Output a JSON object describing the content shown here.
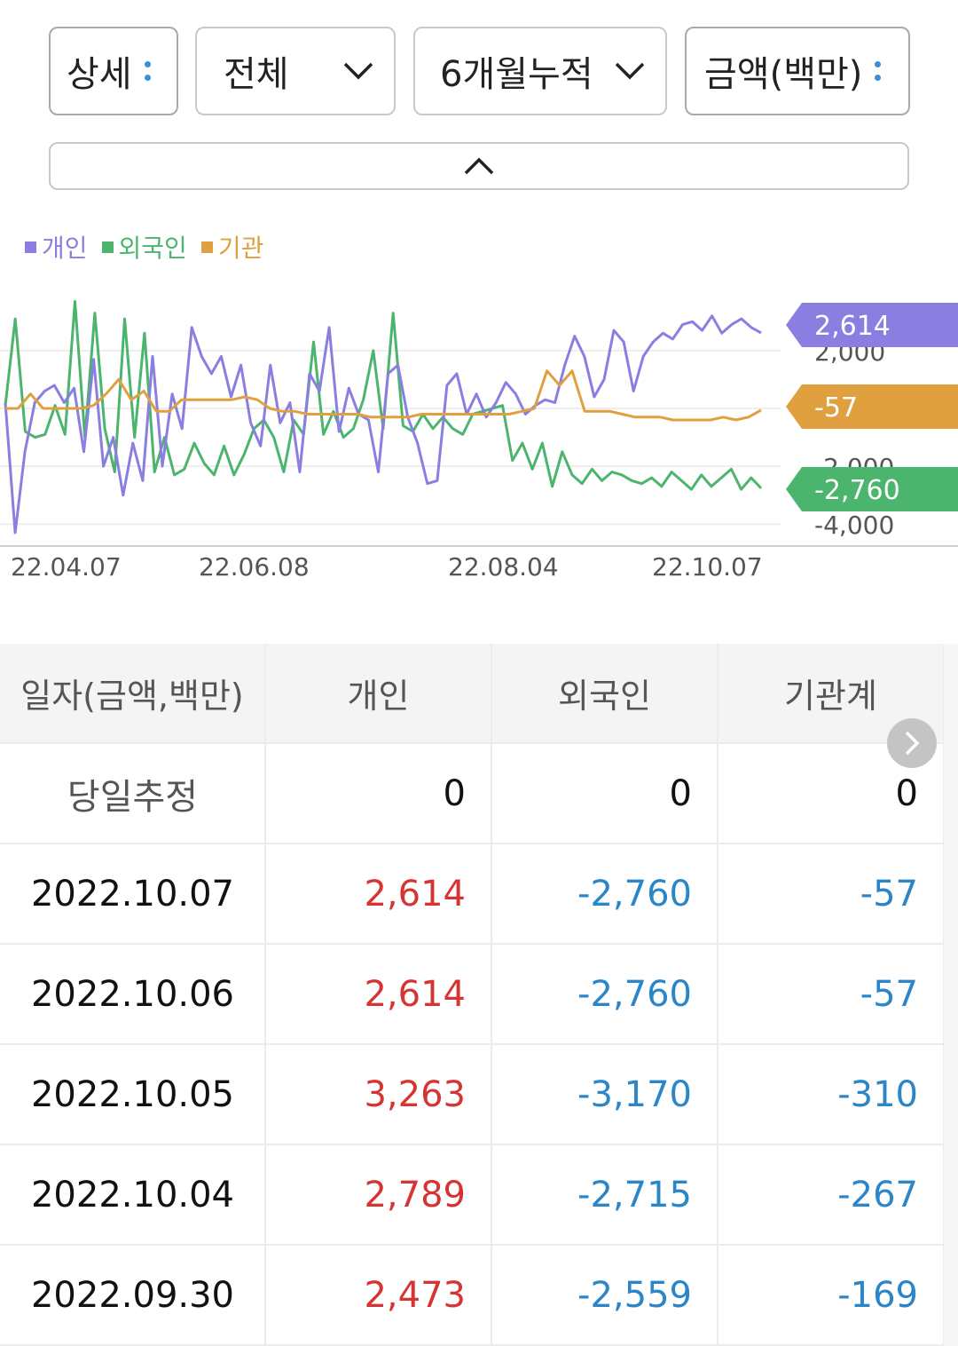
{
  "filters": [
    {
      "label": "상세",
      "control": "dots"
    },
    {
      "label": "전체",
      "control": "chevron"
    },
    {
      "label": "6개월누적",
      "control": "chevron"
    },
    {
      "label": "금액(백만)",
      "control": "dots"
    }
  ],
  "legend": [
    {
      "name": "개인",
      "color": "#8a7ee0"
    },
    {
      "name": "외국인",
      "color": "#4cb56d"
    },
    {
      "name": "기관",
      "color": "#e0a040"
    }
  ],
  "chart_data": {
    "type": "line",
    "x_ticks": [
      "22.04.07",
      "22.06.08",
      "22.08.04",
      "22.10.07"
    ],
    "y_ticks": [
      2000,
      -2000,
      -4000
    ],
    "y_tick_labels": [
      "2,000",
      "-2,000",
      "-4,000"
    ],
    "ylim": [
      -4300,
      4300
    ],
    "grid": true,
    "series": [
      {
        "name": "개인",
        "color": "#8a7ee0",
        "last_value": 2614,
        "last_label": "2,614",
        "values": [
          200,
          -4500,
          -1500,
          200,
          600,
          800,
          200,
          700,
          -1500,
          1700,
          -2000,
          -1000,
          -3000,
          -1200,
          -2500,
          1800,
          -2000,
          500,
          -700,
          2800,
          1800,
          1200,
          1800,
          400,
          1500,
          -500,
          -1300,
          1500,
          -500,
          200,
          -2200,
          1200,
          600,
          2800,
          -800,
          700,
          -200,
          -400,
          -2200,
          1200,
          1500,
          -300,
          -1200,
          -2600,
          -2500,
          800,
          1200,
          -200,
          500,
          -300,
          200,
          900,
          500,
          -200,
          100,
          300,
          200,
          1500,
          2500,
          1800,
          400,
          1000,
          2700,
          2300,
          600,
          1800,
          2300,
          2600,
          2400,
          2900,
          3000,
          2700,
          3200,
          2600,
          2900,
          3100,
          2800,
          2614
        ]
      },
      {
        "name": "외국인",
        "color": "#4cb56d",
        "last_value": -2760,
        "last_label": "-2,760",
        "values": [
          100,
          3100,
          -800,
          -1000,
          -900,
          100,
          -900,
          3700,
          -1000,
          3300,
          -700,
          -2200,
          3100,
          -1000,
          2600,
          -2200,
          -1000,
          -2300,
          -2100,
          -1200,
          -1900,
          -2300,
          -1300,
          -2300,
          -1600,
          -700,
          -400,
          -1000,
          -2200,
          -400,
          -900,
          2300,
          -900,
          -100,
          -1000,
          -700,
          300,
          2000,
          -700,
          3300,
          -600,
          -800,
          -200,
          -700,
          -300,
          -700,
          -900,
          -200,
          -100,
          0,
          100,
          -1800,
          -1200,
          -2100,
          -1200,
          -2700,
          -1500,
          -2300,
          -2600,
          -2100,
          -2500,
          -2200,
          -2300,
          -2500,
          -2600,
          -2400,
          -2700,
          -2200,
          -2500,
          -2800,
          -2300,
          -2700,
          -2400,
          -2100,
          -2800,
          -2400,
          -2760
        ]
      },
      {
        "name": "기관",
        "color": "#e0a040",
        "last_value": -57,
        "last_label": "-57",
        "values": [
          0,
          0,
          500,
          0,
          0,
          0,
          0,
          100,
          500,
          1000,
          300,
          600,
          -100,
          -100,
          300,
          300,
          300,
          300,
          300,
          400,
          300,
          0,
          -100,
          -100,
          -200,
          -200,
          -200,
          -200,
          -200,
          -300,
          -300,
          -300,
          -300,
          -200,
          -200,
          -200,
          -200,
          -200,
          -200,
          -200,
          -200,
          -100,
          0,
          1300,
          800,
          1300,
          -100,
          -100,
          -100,
          -200,
          -300,
          -300,
          -300,
          -400,
          -400,
          -400,
          -400,
          -300,
          -400,
          -300,
          -57
        ]
      }
    ]
  },
  "table": {
    "headers": [
      "일자(금액,백만)",
      "개인",
      "외국인",
      "기관계"
    ],
    "rows": [
      {
        "date": "당일추정",
        "personal": "0",
        "foreign": "0",
        "institution": "0"
      },
      {
        "date": "2022.10.07",
        "personal": "2,614",
        "foreign": "-2,760",
        "institution": "-57"
      },
      {
        "date": "2022.10.06",
        "personal": "2,614",
        "foreign": "-2,760",
        "institution": "-57"
      },
      {
        "date": "2022.10.05",
        "personal": "3,263",
        "foreign": "-3,170",
        "institution": "-310"
      },
      {
        "date": "2022.10.04",
        "personal": "2,789",
        "foreign": "-2,715",
        "institution": "-267"
      },
      {
        "date": "2022.09.30",
        "personal": "2,473",
        "foreign": "-2,559",
        "institution": "-169"
      }
    ]
  }
}
